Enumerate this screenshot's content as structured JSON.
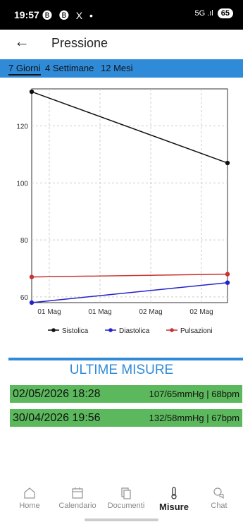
{
  "status_bar": {
    "time": "19:57",
    "notification_icons": "🅑 🅑 X •",
    "signal": "5G .ıl",
    "battery": "65"
  },
  "header": {
    "title": "Pressione"
  },
  "tabs": [
    {
      "label": "7 Giorni",
      "active": true
    },
    {
      "label": "4 Settimane",
      "active": false
    },
    {
      "label": "12 Mesi",
      "active": false
    }
  ],
  "chart_data": {
    "type": "line",
    "categories": [
      "01 Mag",
      "01 Mag",
      "02 Mag",
      "02 Mag"
    ],
    "x_range": [
      0,
      1
    ],
    "ylim": [
      58,
      133
    ],
    "yticks": [
      60,
      80,
      100,
      120
    ],
    "grid": true,
    "legend_position": "bottom",
    "series": [
      {
        "name": "Sistolica",
        "color": "#111111",
        "points": [
          [
            0,
            132
          ],
          [
            1,
            107
          ]
        ]
      },
      {
        "name": "Diastolica",
        "color": "#2323c8",
        "points": [
          [
            0,
            58
          ],
          [
            1,
            65
          ]
        ]
      },
      {
        "name": "Pulsazioni",
        "color": "#c83232",
        "points": [
          [
            0,
            67
          ],
          [
            1,
            68
          ]
        ]
      }
    ]
  },
  "latest": {
    "title": "ULTIME MISURE",
    "rows": [
      {
        "date": "02/05/2026 18:28",
        "values": "107/65mmHg | 68bpm"
      },
      {
        "date": "30/04/2026 19:56",
        "values": "132/58mmHg | 67bpm"
      }
    ]
  },
  "nav": [
    {
      "label": "Home",
      "icon": "home-icon",
      "active": false
    },
    {
      "label": "Calendario",
      "icon": "calendar-icon",
      "active": false
    },
    {
      "label": "Documenti",
      "icon": "documents-icon",
      "active": false
    },
    {
      "label": "Misure",
      "icon": "thermometer-icon",
      "active": true
    },
    {
      "label": "Chat",
      "icon": "chat-icon",
      "active": false
    }
  ]
}
